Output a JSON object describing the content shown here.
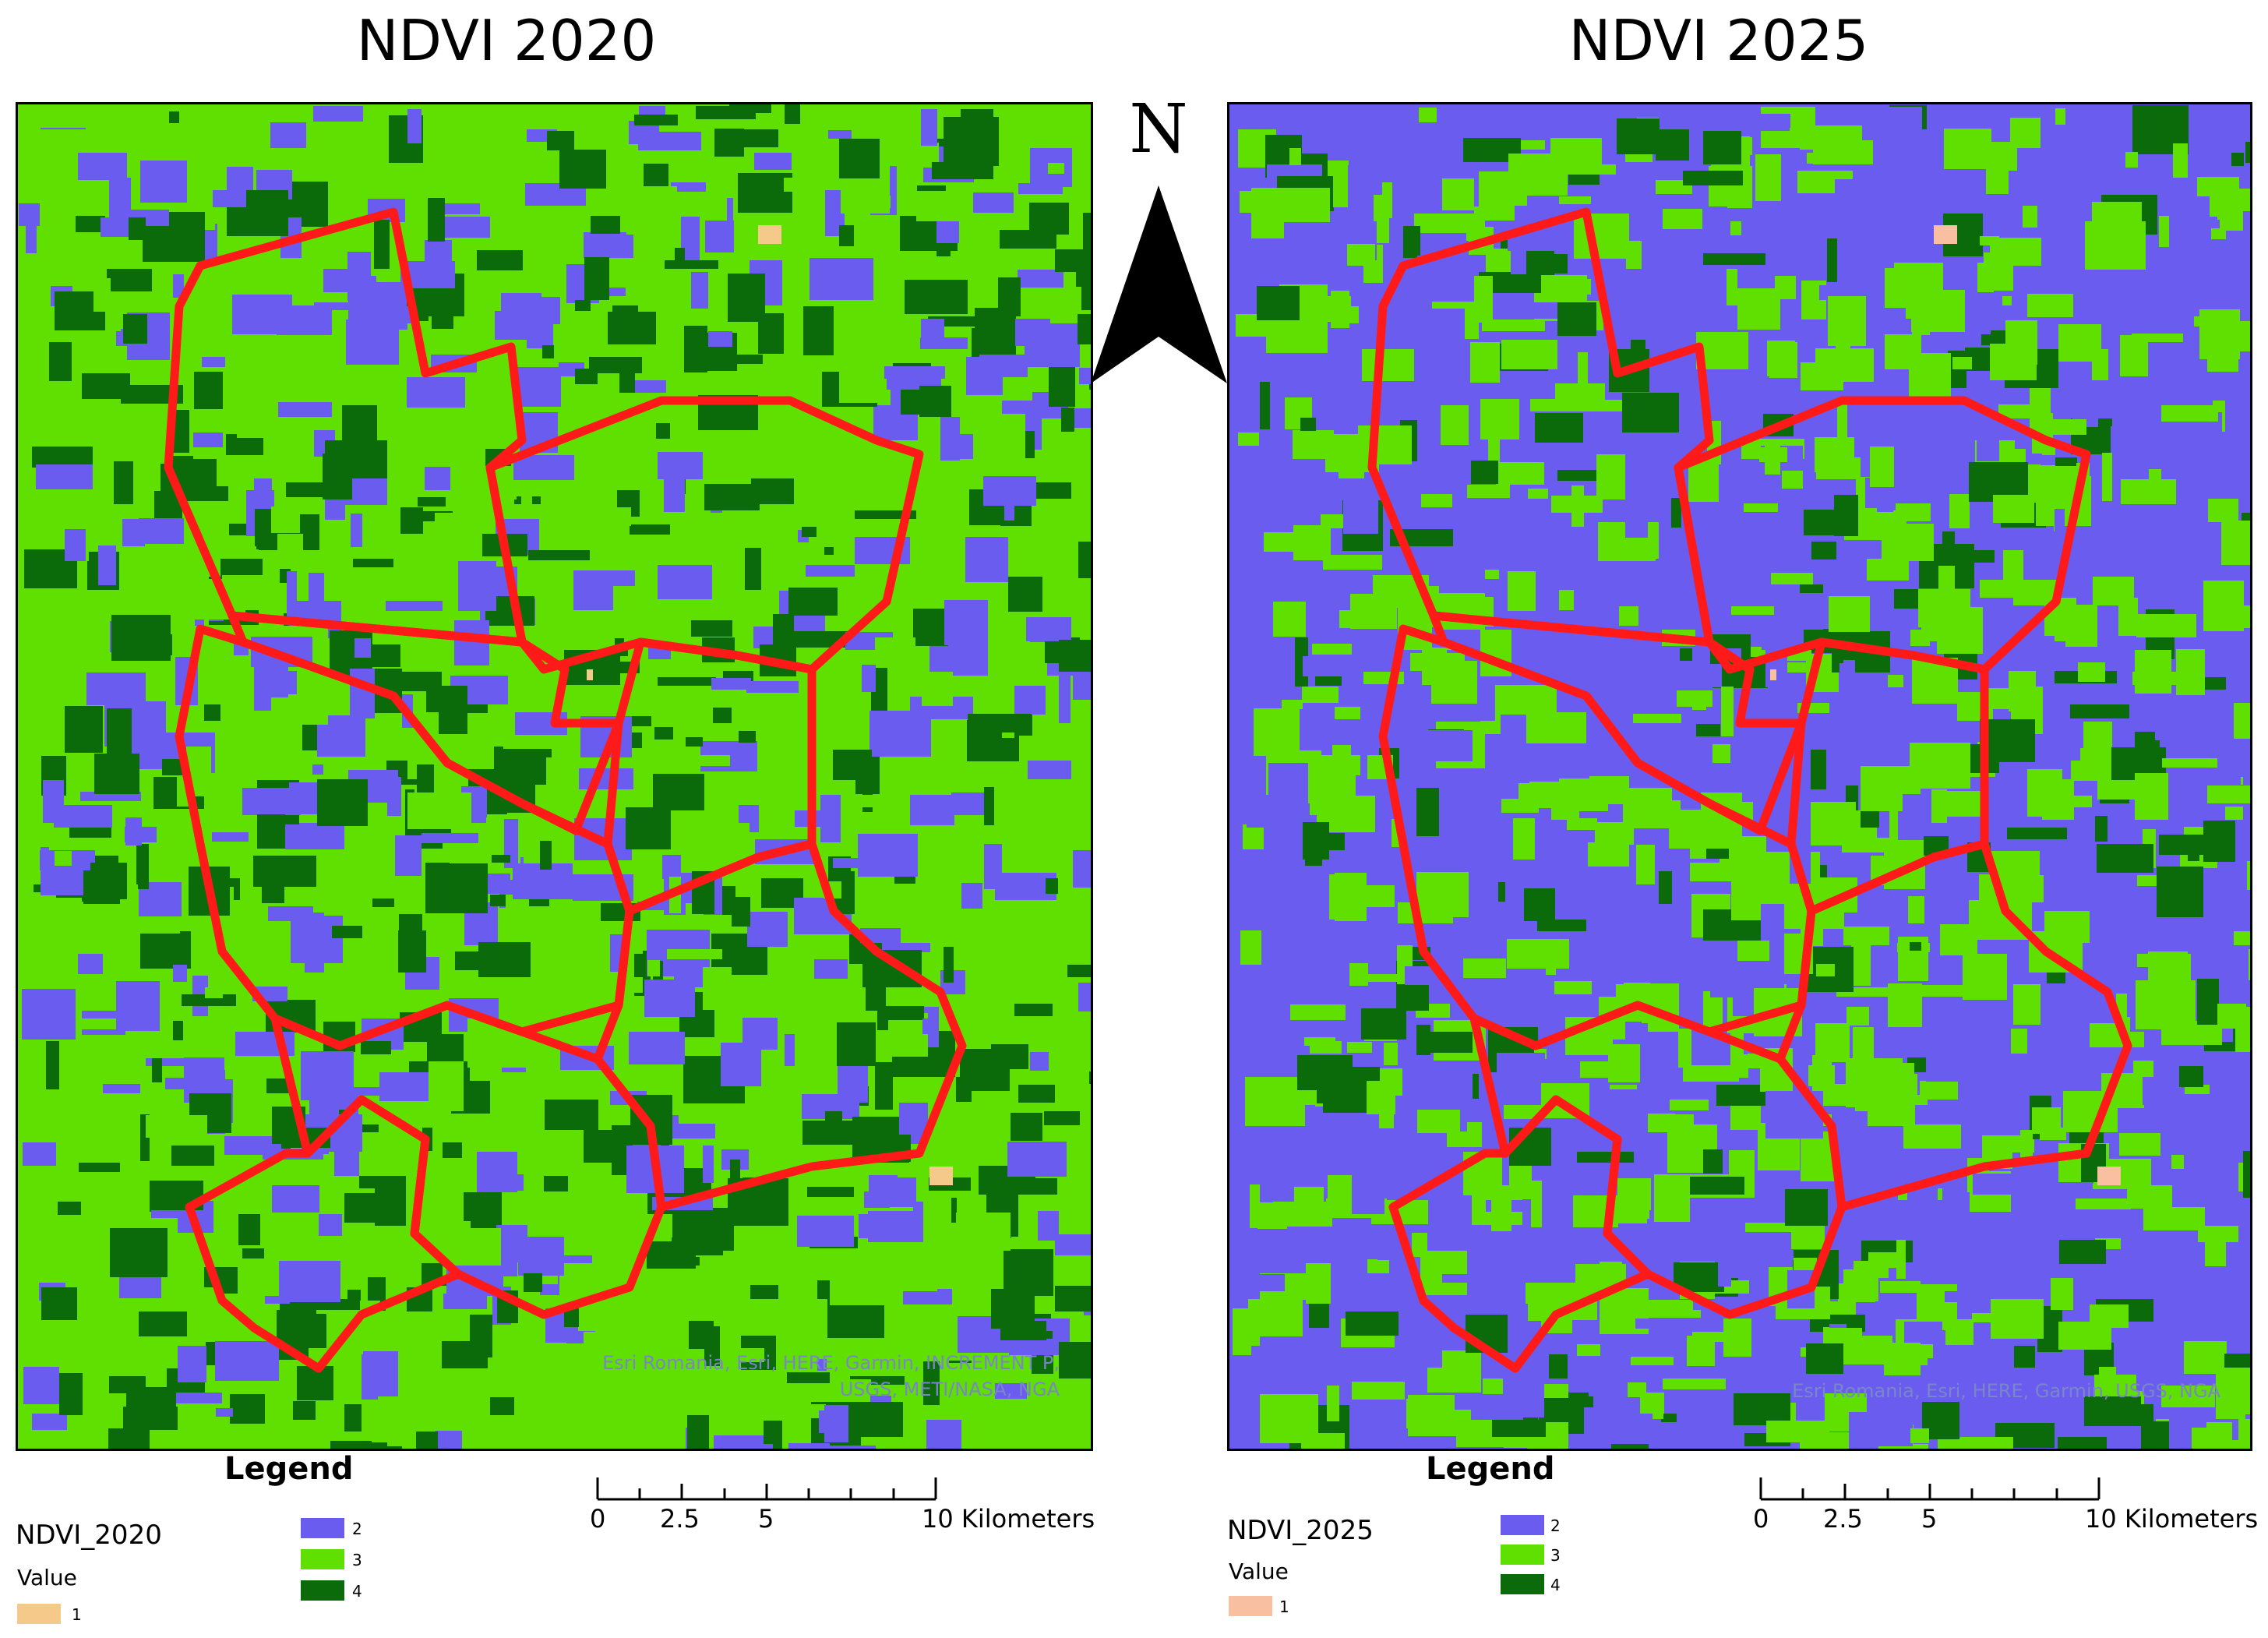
{
  "maps": [
    {
      "title": "NDVI 2020",
      "attribution_line1": "Esri Romania, Esri, HERE, Garmin, INCREMENT P,",
      "attribution_line2": "USGS, METI/NASA, NGA",
      "legend": {
        "title": "Legend",
        "layer": "NDVI_2020",
        "value_label": "Value",
        "classes": [
          {
            "label": "1",
            "color": "#f4c98a"
          },
          {
            "label": "2",
            "color": "#6b5cf0"
          },
          {
            "label": "3",
            "color": "#5fe000"
          },
          {
            "label": "4",
            "color": "#0b6b0b"
          }
        ]
      },
      "dominant_color": "#5fe000",
      "class_colors": {
        "1": "#f4c98a",
        "2": "#6b5cf0",
        "3": "#5fe000",
        "4": "#0b6b0b"
      }
    },
    {
      "title": "NDVI 2025",
      "attribution_line1": "Esri Romania, Esri, HERE, Garmin, USGS, NGA",
      "attribution_line2": "",
      "legend": {
        "title": "Legend",
        "layer": "NDVI_2025",
        "value_label": "Value",
        "classes": [
          {
            "label": "1",
            "color": "#f8c0a0"
          },
          {
            "label": "2",
            "color": "#6b5cf0"
          },
          {
            "label": "3",
            "color": "#5fe000"
          },
          {
            "label": "4",
            "color": "#0b6b0b"
          }
        ]
      },
      "dominant_color": "#6b5cf0",
      "class_colors": {
        "1": "#f8c0a0",
        "2": "#6b5cf0",
        "3": "#5fe000",
        "4": "#0b6b0b"
      }
    }
  ],
  "north_arrow": {
    "label": "N"
  },
  "scale_bar": {
    "labels": [
      "0",
      "2.5",
      "5",
      "10 Kilometers"
    ]
  },
  "boundary_color": "#ff1a1a"
}
